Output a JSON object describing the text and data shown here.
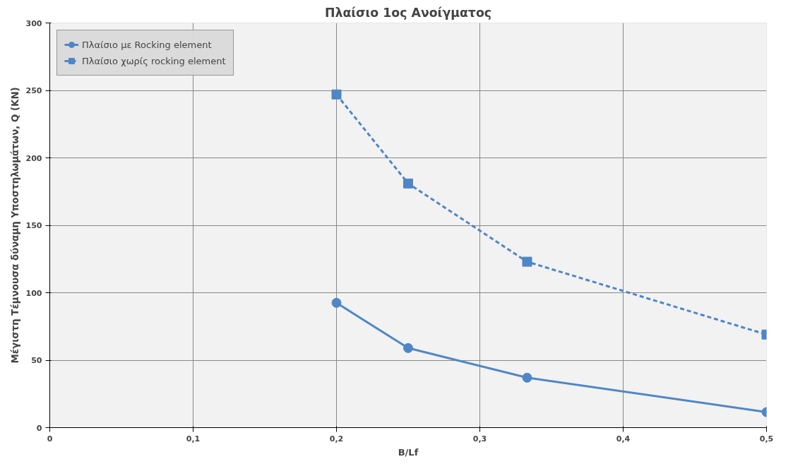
{
  "chart_data": {
    "type": "line",
    "title": "Πλαίσιο 1ος Ανοίγματος",
    "xlabel": "B/Lf",
    "ylabel": "Μέγιστη Τέμνουσα δύναμη Υποστηλωμάτων, Q (KN)",
    "x": [
      0.2,
      0.25,
      0.333,
      0.5
    ],
    "series": [
      {
        "name": "Πλαίσιο με Rocking element",
        "color": "#4f86c6",
        "values": [
          92.5,
          59,
          37,
          11.5
        ],
        "marker": "circle",
        "line_style": "solid"
      },
      {
        "name": "Πλαίσιο χωρίς rocking element",
        "color": "#4f86c6",
        "values": [
          247,
          181,
          123,
          69
        ],
        "marker": "square",
        "line_style": "dashed"
      }
    ],
    "xlim": [
      0,
      0.5
    ],
    "ylim": [
      0,
      300
    ],
    "xticks": [
      {
        "value": 0,
        "label": "0"
      },
      {
        "value": 0.1,
        "label": "0,1"
      },
      {
        "value": 0.2,
        "label": "0,2"
      },
      {
        "value": 0.3,
        "label": "0,3"
      },
      {
        "value": 0.4,
        "label": "0,4"
      },
      {
        "value": 0.5,
        "label": "0,5"
      }
    ],
    "yticks": [
      0,
      50,
      100,
      150,
      200,
      250,
      300
    ],
    "grid": true,
    "legend": "top left"
  }
}
